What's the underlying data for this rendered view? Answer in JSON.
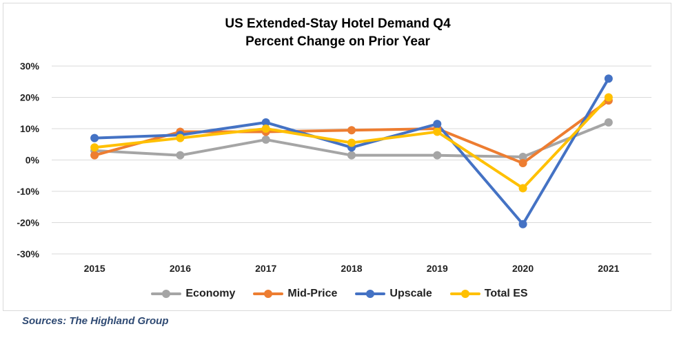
{
  "chart_data": {
    "type": "line",
    "title": "US Extended-Stay Hotel Demand Q4",
    "subtitle": "Percent Change on Prior Year",
    "categories": [
      "2015",
      "2016",
      "2017",
      "2018",
      "2019",
      "2020",
      "2021"
    ],
    "ylim": [
      -30,
      30
    ],
    "yticks": [
      30,
      20,
      10,
      0,
      -10,
      -20,
      -30
    ],
    "ytick_labels": [
      "30%",
      "20%",
      "10%",
      "0%",
      "-10%",
      "-20%",
      "-30%"
    ],
    "grid": true,
    "legend_position": "bottom",
    "series": [
      {
        "name": "Economy",
        "color": "#a5a5a5",
        "values": [
          3,
          1.5,
          6.5,
          1.5,
          1.5,
          1,
          12
        ]
      },
      {
        "name": "Mid-Price",
        "color": "#ed7d31",
        "values": [
          1.5,
          9,
          9,
          9.5,
          10,
          -1,
          19
        ]
      },
      {
        "name": "Upscale",
        "color": "#4472c4",
        "values": [
          7,
          8,
          12,
          4,
          11.5,
          -20.5,
          26
        ]
      },
      {
        "name": "Total ES",
        "color": "#ffc000",
        "values": [
          4,
          7,
          10,
          5.5,
          9,
          -9,
          20
        ]
      }
    ]
  },
  "source": "Sources: The Highland Group"
}
